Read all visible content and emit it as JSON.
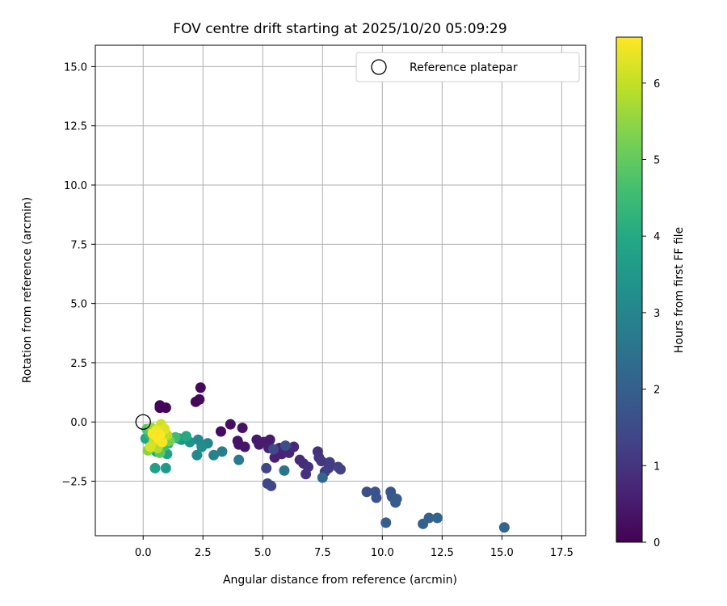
{
  "chart_data": {
    "type": "scatter",
    "title": "FOV centre drift starting at 2025/10/20 05:09:29",
    "xlabel": "Angular distance from reference (arcmin)",
    "ylabel": "Rotation from reference (arcmin)",
    "xlim": [
      -2.0,
      18.5
    ],
    "ylim": [
      -4.8,
      15.9
    ],
    "xticks": [
      "0.0",
      "2.5",
      "5.0",
      "7.5",
      "10.0",
      "12.5",
      "15.0",
      "17.5"
    ],
    "xtick_values": [
      0,
      2.5,
      5,
      7.5,
      10,
      12.5,
      15,
      17.5
    ],
    "yticks": [
      "−2.5",
      "0.0",
      "2.5",
      "5.0",
      "7.5",
      "10.0",
      "12.5",
      "15.0"
    ],
    "ytick_values": [
      -2.5,
      0,
      2.5,
      5,
      7.5,
      10,
      12.5,
      15
    ],
    "grid": true,
    "legend": {
      "placement": "top-right",
      "entries": [
        {
          "label": "Reference platepar",
          "marker": "open-circle"
        }
      ]
    },
    "reference_point": {
      "x": 0.0,
      "y": 0.0,
      "name": "Reference platepar"
    },
    "colorbar": {
      "label": "Hours from first FF file",
      "colormap": "viridis",
      "range": [
        0,
        6.6
      ],
      "ticks": [
        "0",
        "1",
        "2",
        "3",
        "4",
        "5",
        "6"
      ],
      "tick_values": [
        0,
        1,
        2,
        3,
        4,
        5,
        6
      ]
    },
    "points": [
      [
        0.7,
        0.6,
        0.05
      ],
      [
        0.95,
        0.6,
        0.05
      ],
      [
        0.7,
        0.7,
        0.1
      ],
      [
        2.2,
        0.85,
        0.15
      ],
      [
        2.35,
        0.95,
        0.15
      ],
      [
        2.4,
        1.45,
        0.15
      ],
      [
        3.25,
        -0.4,
        0.2
      ],
      [
        3.65,
        -0.1,
        0.25
      ],
      [
        4.15,
        -0.25,
        0.3
      ],
      [
        3.95,
        -0.8,
        0.35
      ],
      [
        4.0,
        -0.95,
        0.35
      ],
      [
        4.25,
        -1.05,
        0.4
      ],
      [
        4.75,
        -0.75,
        0.45
      ],
      [
        4.85,
        -0.95,
        0.45
      ],
      [
        5.05,
        -0.85,
        0.5
      ],
      [
        5.3,
        -0.75,
        0.5
      ],
      [
        5.25,
        -1.1,
        0.55
      ],
      [
        5.5,
        -1.5,
        0.6
      ],
      [
        5.7,
        -1.1,
        0.6
      ],
      [
        5.8,
        -1.35,
        0.65
      ],
      [
        5.95,
        -1.2,
        0.7
      ],
      [
        6.1,
        -1.3,
        0.7
      ],
      [
        6.3,
        -1.05,
        0.75
      ],
      [
        6.55,
        -1.6,
        0.8
      ],
      [
        6.7,
        -1.75,
        0.85
      ],
      [
        6.9,
        -1.9,
        0.9
      ],
      [
        6.8,
        -2.2,
        0.95
      ],
      [
        7.3,
        -1.25,
        0.95
      ],
      [
        7.35,
        -1.5,
        1.0
      ],
      [
        7.45,
        -1.65,
        1.05
      ],
      [
        7.6,
        -2.1,
        1.1
      ],
      [
        7.8,
        -1.7,
        1.15
      ],
      [
        7.75,
        -1.95,
        1.2
      ],
      [
        8.15,
        -1.9,
        1.25
      ],
      [
        8.25,
        -2.0,
        1.3
      ],
      [
        5.15,
        -1.95,
        1.35
      ],
      [
        5.2,
        -2.6,
        1.4
      ],
      [
        5.35,
        -2.7,
        1.45
      ],
      [
        5.45,
        -1.15,
        1.5
      ],
      [
        5.95,
        -1.0,
        1.55
      ],
      [
        9.35,
        -2.95,
        1.6
      ],
      [
        9.7,
        -2.95,
        1.65
      ],
      [
        9.75,
        -3.2,
        1.7
      ],
      [
        10.35,
        -2.95,
        1.75
      ],
      [
        10.4,
        -3.15,
        1.8
      ],
      [
        10.55,
        -3.4,
        1.85
      ],
      [
        10.6,
        -3.25,
        1.9
      ],
      [
        10.15,
        -4.25,
        1.95
      ],
      [
        11.7,
        -4.3,
        2.0
      ],
      [
        11.95,
        -4.05,
        2.05
      ],
      [
        12.3,
        -4.05,
        2.1
      ],
      [
        15.1,
        -4.45,
        2.1
      ],
      [
        7.5,
        -2.35,
        2.2
      ],
      [
        5.9,
        -2.05,
        2.5
      ],
      [
        4.0,
        -1.6,
        2.7
      ],
      [
        3.3,
        -1.25,
        2.8
      ],
      [
        2.95,
        -1.4,
        2.9
      ],
      [
        2.7,
        -0.9,
        3.0
      ],
      [
        2.3,
        -0.75,
        3.1
      ],
      [
        2.25,
        -1.4,
        3.1
      ],
      [
        2.45,
        -1.05,
        3.2
      ],
      [
        1.95,
        -0.85,
        3.3
      ],
      [
        1.6,
        -0.75,
        3.4
      ],
      [
        1.5,
        -0.7,
        3.5
      ],
      [
        1.2,
        -0.7,
        3.5
      ],
      [
        1.05,
        -0.9,
        3.6
      ],
      [
        0.95,
        -1.95,
        3.6
      ],
      [
        0.5,
        -1.95,
        3.7
      ],
      [
        1.0,
        -1.35,
        3.75
      ],
      [
        0.8,
        -1.1,
        3.8
      ],
      [
        0.55,
        -1.25,
        3.8
      ],
      [
        0.1,
        -0.7,
        3.85
      ],
      [
        0.3,
        -0.85,
        3.9
      ],
      [
        1.8,
        -0.6,
        4.0
      ],
      [
        0.6,
        -0.9,
        4.1
      ],
      [
        0.25,
        -0.5,
        4.3
      ],
      [
        0.4,
        -1.05,
        4.4
      ],
      [
        1.35,
        -0.65,
        4.5
      ],
      [
        0.9,
        -1.0,
        4.6
      ],
      [
        0.15,
        -0.3,
        4.8
      ],
      [
        0.7,
        -1.3,
        4.9
      ],
      [
        0.5,
        -0.6,
        5.0
      ],
      [
        1.1,
        -0.8,
        5.2
      ],
      [
        0.2,
        -1.2,
        5.4
      ],
      [
        0.35,
        -0.25,
        5.6
      ],
      [
        0.85,
        -0.45,
        5.7
      ],
      [
        0.6,
        -1.1,
        5.8
      ],
      [
        1.0,
        -0.55,
        5.9
      ],
      [
        0.45,
        -0.8,
        6.0
      ],
      [
        0.75,
        -0.1,
        6.1
      ],
      [
        0.3,
        -1.05,
        6.2
      ],
      [
        0.9,
        -0.3,
        6.3
      ],
      [
        0.65,
        -0.75,
        6.4
      ],
      [
        0.55,
        -0.35,
        6.45
      ],
      [
        0.8,
        -0.85,
        6.5
      ],
      [
        0.4,
        -0.5,
        6.55
      ],
      [
        0.7,
        -0.55,
        6.6
      ],
      [
        0.6,
        -0.65,
        6.6
      ]
    ]
  }
}
